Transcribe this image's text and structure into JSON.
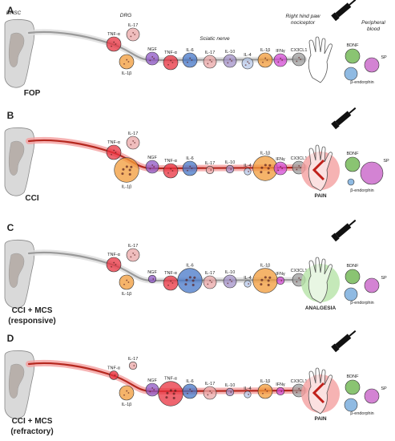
{
  "headers": {
    "dhsc": "DHSC",
    "drg": "DRG",
    "sciatic": "Sciatic nerve",
    "paw": "Right hind paw\nnociceptor",
    "blood": "Peripheral\nblood"
  },
  "panels": [
    {
      "letter": "A",
      "condition": [
        "FOP"
      ],
      "outcome": "",
      "bdnf": "BDNF",
      "sp": "SP",
      "endorphin": "β-endorphin",
      "markers": [
        {
          "label": "TNF-α",
          "color": "#e8313f",
          "level": "normal"
        },
        {
          "label": "IL-17",
          "color": "#e9a7a7",
          "level": "normal"
        },
        {
          "label": "IL-1β",
          "color": "#f29b38",
          "level": "normal"
        },
        {
          "label": "NGF",
          "color": "#8d55c4",
          "level": "normal"
        },
        {
          "label": "TNF-α",
          "color": "#e8313f",
          "level": "normal"
        },
        {
          "label": "IL-6",
          "color": "#4677c8",
          "level": "normal"
        },
        {
          "label": "IL-17",
          "color": "#e9a7a7",
          "level": "normal"
        },
        {
          "label": "IL-10",
          "color": "#a391c8",
          "level": "normal"
        },
        {
          "label": "IL-4",
          "color": "#b8c9ea",
          "level": "normal"
        },
        {
          "label": "IL-1β",
          "color": "#f29b38",
          "level": "normal"
        },
        {
          "label": "IFNγ",
          "color": "#d34bd4",
          "level": "normal"
        },
        {
          "label": "CX3CL1",
          "color": "#9c9c9c",
          "level": "normal"
        }
      ]
    },
    {
      "letter": "B",
      "condition": [
        "CCI"
      ],
      "outcome": "PAIN",
      "bdnf": "BDNF",
      "sp": "SP",
      "endorphin": "β-endorphin",
      "markers": [
        {
          "label": "TNF-α",
          "color": "#e8313f",
          "level": "normal"
        },
        {
          "label": "IL-17",
          "color": "#e9a7a7",
          "level": "normal"
        },
        {
          "label": "IL-1β",
          "color": "#f29b38",
          "level": "high"
        },
        {
          "label": "NGF",
          "color": "#8d55c4",
          "level": "normal"
        },
        {
          "label": "TNF-α",
          "color": "#e8313f",
          "level": "normal"
        },
        {
          "label": "IL-6",
          "color": "#4677c8",
          "level": "normal"
        },
        {
          "label": "IL-17",
          "color": "#e9a7a7",
          "level": "low"
        },
        {
          "label": "IL-10",
          "color": "#a391c8",
          "level": "low"
        },
        {
          "label": "IL-4",
          "color": "#b8c9ea",
          "level": "low"
        },
        {
          "label": "IL-1β",
          "color": "#f29b38",
          "level": "high"
        },
        {
          "label": "IFNγ",
          "color": "#d34bd4",
          "level": "normal"
        },
        {
          "label": "CX3CL1",
          "color": "#9c9c9c",
          "level": "normal"
        }
      ]
    },
    {
      "letter": "C",
      "condition": [
        "CCI + MCS",
        "(responsive)"
      ],
      "outcome": "ANALGESIA",
      "bdnf": "BDNF",
      "sp": "SP",
      "endorphin": "β-endorphin",
      "markers": [
        {
          "label": "TNF-α",
          "color": "#e8313f",
          "level": "normal"
        },
        {
          "label": "IL-17",
          "color": "#e9a7a7",
          "level": "normal"
        },
        {
          "label": "IL-1β",
          "color": "#f29b38",
          "level": "normal"
        },
        {
          "label": "NGF",
          "color": "#8d55c4",
          "level": "low"
        },
        {
          "label": "TNF-α",
          "color": "#e8313f",
          "level": "normal"
        },
        {
          "label": "IL-6",
          "color": "#4677c8",
          "level": "high"
        },
        {
          "label": "IL-17",
          "color": "#e9a7a7",
          "level": "normal"
        },
        {
          "label": "IL-10",
          "color": "#a391c8",
          "level": "normal"
        },
        {
          "label": "IL-4",
          "color": "#b8c9ea",
          "level": "low"
        },
        {
          "label": "IL-1β",
          "color": "#f29b38",
          "level": "high"
        },
        {
          "label": "IFNγ",
          "color": "#d34bd4",
          "level": "low"
        },
        {
          "label": "CX3CL1",
          "color": "#9c9c9c",
          "level": "normal"
        }
      ]
    },
    {
      "letter": "D",
      "condition": [
        "CCI + MCS",
        "(refractory)"
      ],
      "outcome": "PAIN",
      "bdnf": "BDNF",
      "sp": "SP",
      "endorphin": "β-endorphin",
      "markers": [
        {
          "label": "TNF-α",
          "color": "#e8313f",
          "level": "low"
        },
        {
          "label": "IL-17",
          "color": "#e9a7a7",
          "level": "low"
        },
        {
          "label": "IL-1β",
          "color": "#f29b38",
          "level": "normal"
        },
        {
          "label": "NGF",
          "color": "#8d55c4",
          "level": "normal"
        },
        {
          "label": "TNF-α",
          "color": "#e8313f",
          "level": "high"
        },
        {
          "label": "IL-6",
          "color": "#4677c8",
          "level": "normal"
        },
        {
          "label": "IL-17",
          "color": "#e9a7a7",
          "level": "normal"
        },
        {
          "label": "IL-10",
          "color": "#a391c8",
          "level": "low"
        },
        {
          "label": "IL-4",
          "color": "#b8c9ea",
          "level": "low"
        },
        {
          "label": "IL-1β",
          "color": "#f29b38",
          "level": "normal"
        },
        {
          "label": "IFNγ",
          "color": "#d34bd4",
          "level": "low"
        },
        {
          "label": "CX3CL1",
          "color": "#9c9c9c",
          "level": "normal"
        }
      ]
    }
  ],
  "colors": {
    "nerve_normal": "#9a9a9a",
    "nerve_injured": "#b5281f",
    "pain_halo": "#f4a0a0",
    "analgesia_halo": "#b6e3a8",
    "bdnf": "#63b043",
    "sp": "#c04fc0",
    "endorphin": "#6aa3d8"
  }
}
